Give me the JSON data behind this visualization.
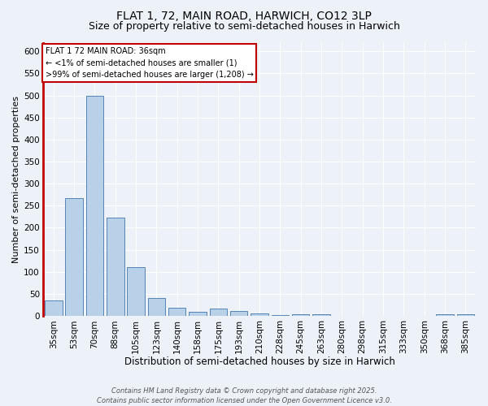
{
  "title_line1": "FLAT 1, 72, MAIN ROAD, HARWICH, CO12 3LP",
  "title_line2": "Size of property relative to semi-detached houses in Harwich",
  "xlabel": "Distribution of semi-detached houses by size in Harwich",
  "ylabel": "Number of semi-detached properties",
  "categories": [
    "35sqm",
    "53sqm",
    "70sqm",
    "88sqm",
    "105sqm",
    "123sqm",
    "140sqm",
    "158sqm",
    "175sqm",
    "193sqm",
    "210sqm",
    "228sqm",
    "245sqm",
    "263sqm",
    "280sqm",
    "298sqm",
    "315sqm",
    "333sqm",
    "350sqm",
    "368sqm",
    "385sqm"
  ],
  "values": [
    35,
    268,
    500,
    223,
    110,
    40,
    18,
    9,
    16,
    12,
    5,
    2,
    3,
    3,
    0,
    0,
    0,
    0,
    0,
    4,
    4
  ],
  "bar_color": "#b8d0e8",
  "bar_edge_color": "#5585b5",
  "highlight_color": "#c00000",
  "annotation_text": "FLAT 1 72 MAIN ROAD: 36sqm\n← <1% of semi-detached houses are smaller (1)\n>99% of semi-detached houses are larger (1,208) →",
  "annotation_box_edge_color": "#c00000",
  "annotation_box_face_color": "#ffffff",
  "ylim": [
    0,
    620
  ],
  "yticks": [
    0,
    50,
    100,
    150,
    200,
    250,
    300,
    350,
    400,
    450,
    500,
    550,
    600
  ],
  "background_color": "#edf2f9",
  "grid_color": "#ffffff",
  "footnote_line1": "Contains HM Land Registry data © Crown copyright and database right 2025.",
  "footnote_line2": "Contains public sector information licensed under the Open Government Licence v3.0.",
  "title_fontsize": 10,
  "subtitle_fontsize": 9,
  "tick_fontsize": 7.5,
  "ylabel_fontsize": 8,
  "xlabel_fontsize": 8.5
}
